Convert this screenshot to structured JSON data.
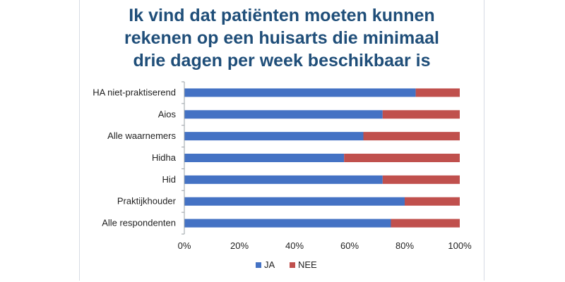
{
  "title_lines": [
    "Ik vind dat patiënten moeten kunnen",
    "rekenen op een huisarts die minimaal",
    "drie dagen per week beschikbaar is"
  ],
  "colors": {
    "ja": "#4472c4",
    "nee": "#c0504d",
    "title": "#1f4e79"
  },
  "chart_data": {
    "type": "bar",
    "orientation": "horizontal",
    "stacked": true,
    "title": "Ik vind dat patiënten moeten kunnen rekenen op een huisarts die minimaal drie dagen per week beschikbaar is",
    "categories": [
      "HA niet-praktiserend",
      "Aios",
      "Alle waarnemers",
      "Hidha",
      "Hid",
      "Praktijkhouder",
      "Alle respondenten"
    ],
    "series": [
      {
        "name": "JA",
        "values": [
          84,
          72,
          65,
          58,
          72,
          80,
          75
        ]
      },
      {
        "name": "NEE",
        "values": [
          16,
          28,
          35,
          42,
          28,
          20,
          25
        ]
      }
    ],
    "xlim": [
      0,
      100
    ],
    "xticks": [
      "0%",
      "20%",
      "40%",
      "60%",
      "80%",
      "100%"
    ],
    "xlabel": "",
    "ylabel": "",
    "legend": "bottom-center",
    "grid": false
  }
}
